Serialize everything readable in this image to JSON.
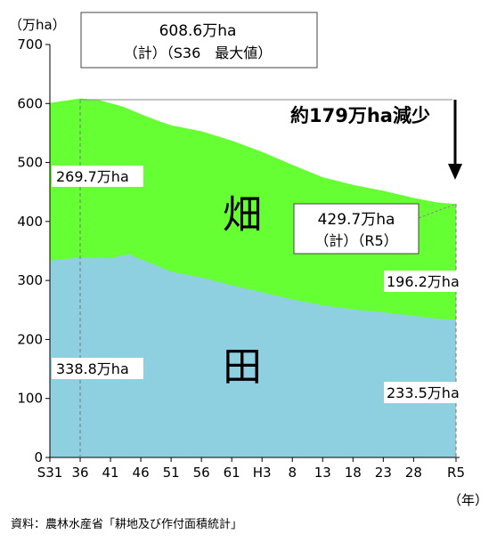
{
  "chart_data": {
    "type": "area",
    "y_unit": "（万ha）",
    "x_unit": "（年）",
    "ylim": [
      0,
      700
    ],
    "yticks": [
      0,
      100,
      200,
      300,
      400,
      500,
      600,
      700
    ],
    "x_tick_labels": [
      "S31",
      "36",
      "41",
      "46",
      "51",
      "56",
      "61",
      "H3",
      "8",
      "13",
      "18",
      "23",
      "28",
      "R5"
    ],
    "grid": false,
    "series": [
      {
        "name": "田",
        "color": "#8ecfe0",
        "points": [
          [
            0,
            334
          ],
          [
            5,
            338.8
          ],
          [
            10,
            338
          ],
          [
            12,
            342
          ],
          [
            13,
            345
          ],
          [
            14,
            340
          ],
          [
            17,
            328
          ],
          [
            20,
            315
          ],
          [
            25,
            305
          ],
          [
            30,
            292
          ],
          [
            35,
            280
          ],
          [
            40,
            268
          ],
          [
            45,
            258
          ],
          [
            50,
            251
          ],
          [
            55,
            246
          ],
          [
            60,
            240
          ],
          [
            64,
            235
          ],
          [
            67,
            233.5
          ]
        ]
      },
      {
        "name": "畑",
        "color": "#66ff33",
        "points": [
          [
            0,
            601
          ],
          [
            5,
            608.6
          ],
          [
            8,
            606
          ],
          [
            12,
            595
          ],
          [
            15,
            582
          ],
          [
            18,
            570
          ],
          [
            20,
            563
          ],
          [
            25,
            553
          ],
          [
            30,
            537
          ],
          [
            35,
            518
          ],
          [
            40,
            496
          ],
          [
            45,
            475
          ],
          [
            50,
            462
          ],
          [
            55,
            452
          ],
          [
            60,
            440
          ],
          [
            64,
            432
          ],
          [
            67,
            429.7
          ]
        ]
      }
    ],
    "annotations": {
      "peak_box": {
        "line1": "608.6万ha",
        "line2": "（計）（S36　最大値）"
      },
      "r5_box": {
        "line1": "429.7万ha",
        "line2": "（計）（R5）"
      },
      "decline": "約179万ha減少",
      "hata_s36": "269.7万ha",
      "ta_s36": "338.8万ha",
      "hata_r5": "196.2万ha",
      "ta_r5": "233.5万ha",
      "hata_label": "畑",
      "ta_label": "田"
    }
  },
  "source": "資料：農林水産省「耕地及び作付面積統計」"
}
